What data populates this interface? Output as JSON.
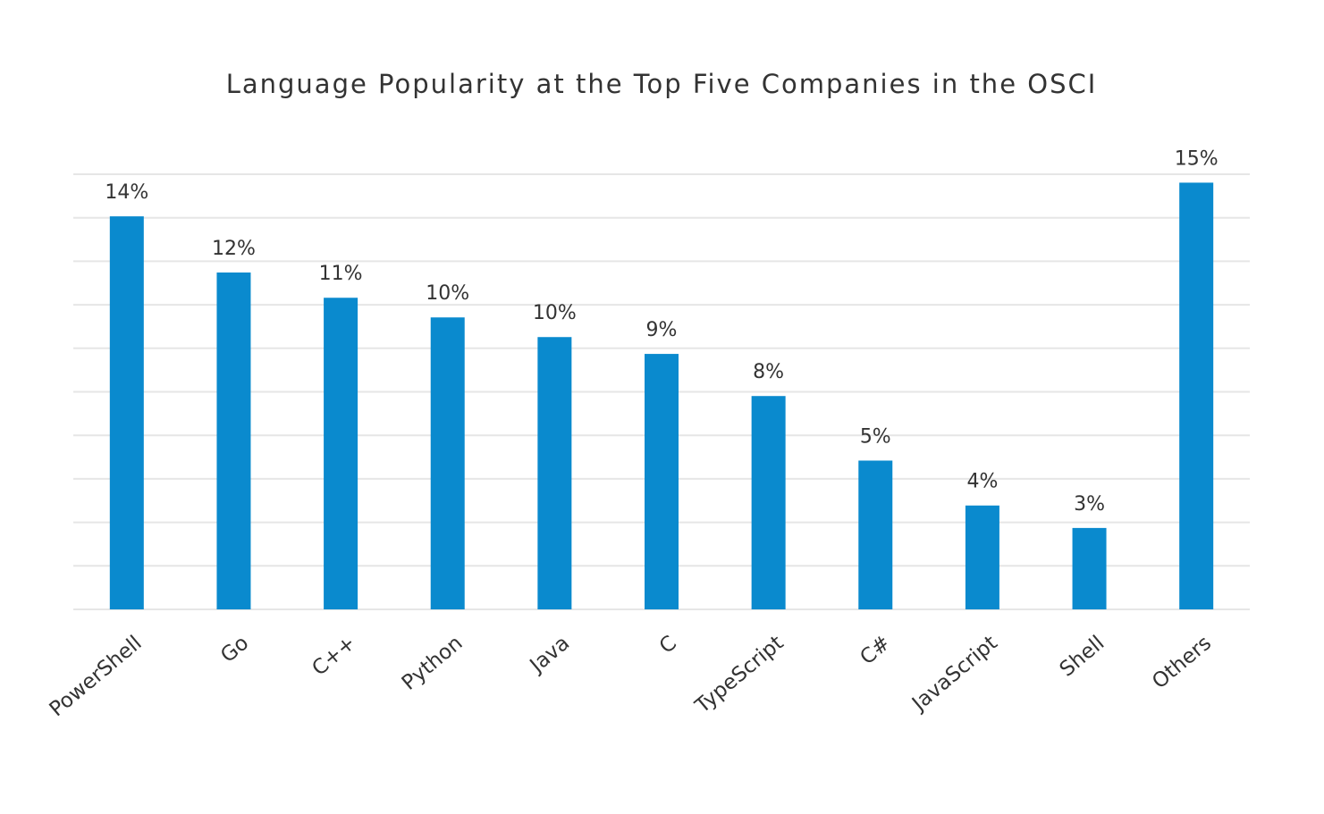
{
  "chart_data": {
    "type": "bar",
    "title": "Language Popularity at the Top Five Companies in the OSCI",
    "categories": [
      "PowerShell",
      "Go",
      "C++",
      "Python",
      "Java",
      "C",
      "TypeScript",
      "C#",
      "JavaScript",
      "Shell",
      "Others"
    ],
    "values": [
      14.0,
      12.0,
      11.1,
      10.4,
      9.7,
      9.1,
      7.6,
      5.3,
      3.7,
      2.9,
      15.2
    ],
    "value_labels": [
      "14%",
      "12%",
      "11%",
      "10%",
      "10%",
      "9%",
      "8%",
      "5%",
      "4%",
      "3%",
      "15%"
    ],
    "color": "#0a8ace",
    "ylim": [
      0,
      15.5
    ],
    "yticks": [
      0,
      1.55,
      3.1,
      4.65,
      6.2,
      7.75,
      9.3,
      10.85,
      12.4,
      13.95,
      15.5
    ],
    "grid": true
  }
}
